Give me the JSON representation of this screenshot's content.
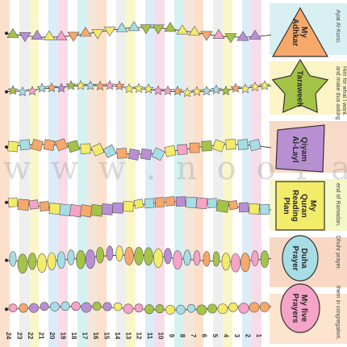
{
  "chart_data": {
    "type": "table",
    "columns": [
      "24",
      "23",
      "22",
      "21",
      "20",
      "19",
      "18",
      "17",
      "16",
      "15",
      "14",
      "13",
      "12",
      "11",
      "10",
      "9",
      "8",
      "7",
      "6",
      "5",
      "4",
      "3",
      "2",
      "1"
    ],
    "rows": [
      {
        "label": "My Adhkar",
        "note": "Ayat Al-Kursi.",
        "tag_color": "#f7a86b",
        "shape": "triangle"
      },
      {
        "label": "Taraweeh",
        "note": "and make dua asking Him for what I want.",
        "tag_color": "#a5c447",
        "shape": "star"
      },
      {
        "label": "Qiyam Al-Layl",
        "note": "",
        "tag_color": "#b98fd4",
        "shape": "diamond"
      },
      {
        "label": "My Quran Reading Plan",
        "note": "end of Ramadan.",
        "tag_color": "#f3eb6a",
        "shape": "square"
      },
      {
        "label": "Duha Prayer",
        "note": "Dhuhr prayer.",
        "tag_color": "#a7dde4",
        "shape": "pebble"
      },
      {
        "label": "My five Prayers",
        "note": "them in congregation.",
        "tag_color": "#f5a3c7",
        "shape": "circle"
      }
    ],
    "palette": [
      "#f7a86b",
      "#a5c447",
      "#b98fd4",
      "#f3eb6a",
      "#a7dde4",
      "#f5a3c7"
    ],
    "watermark": "www.noorart.c"
  }
}
